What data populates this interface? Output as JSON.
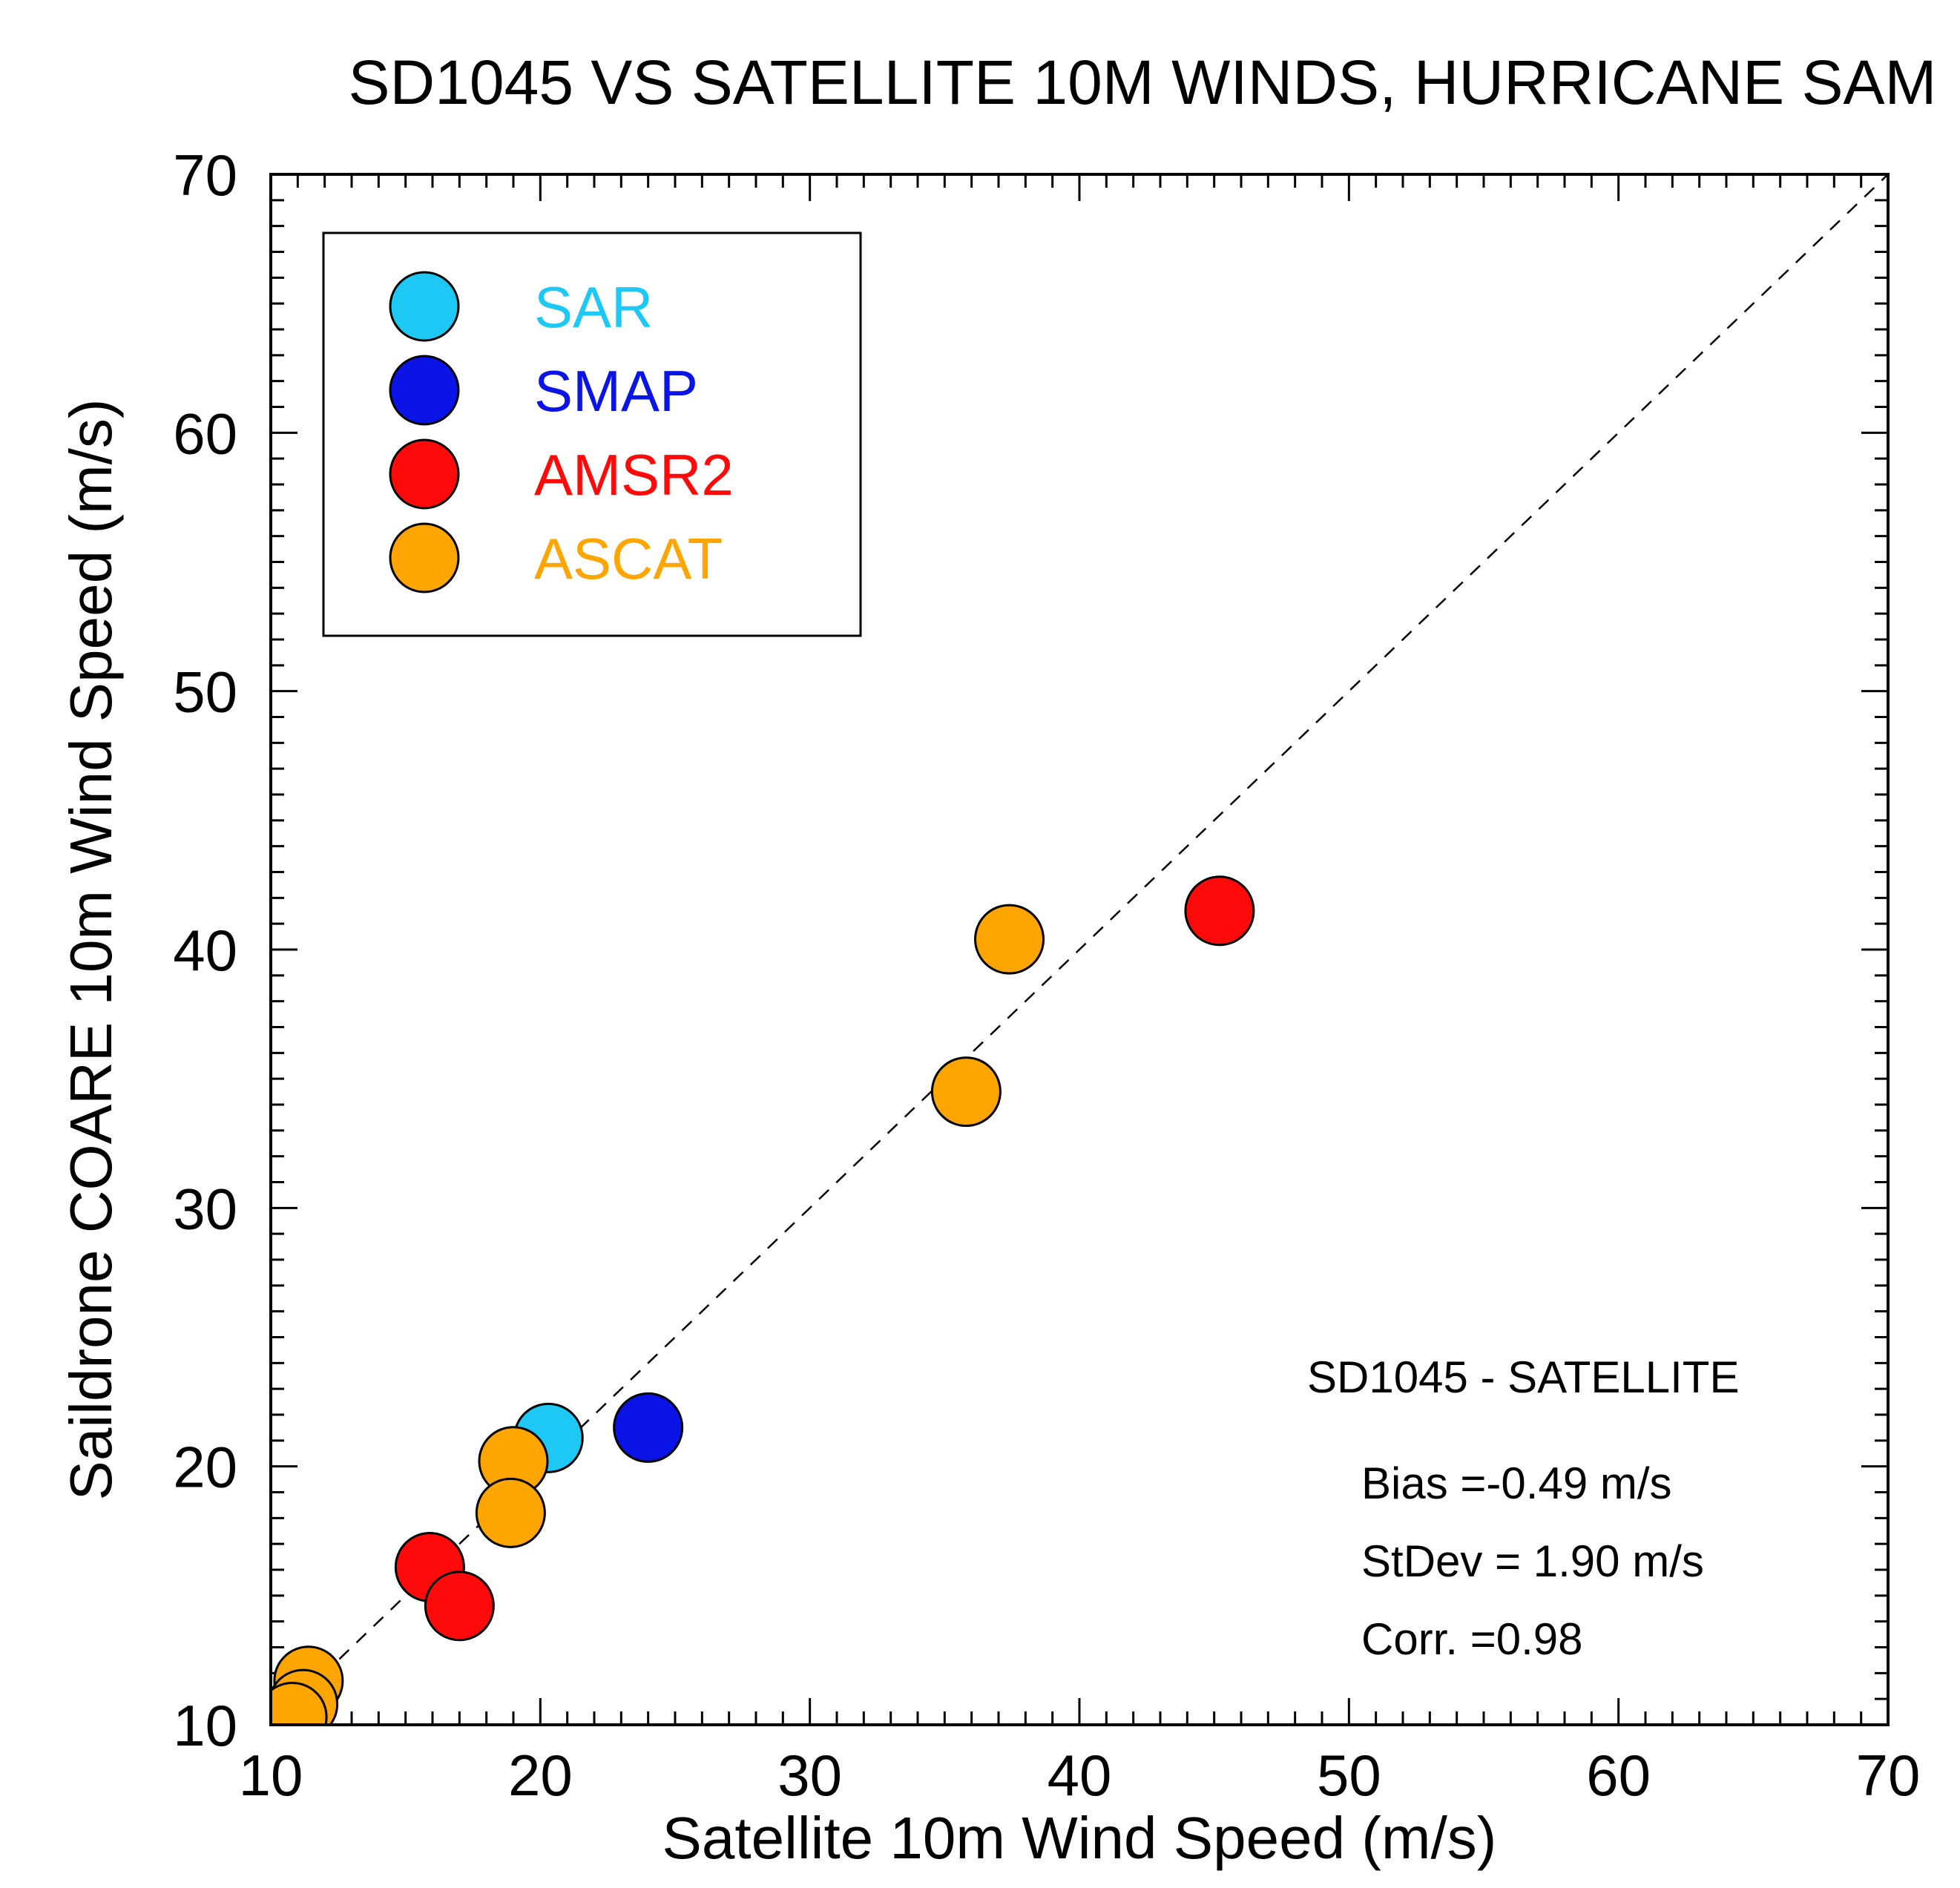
{
  "chart_data": {
    "type": "scatter",
    "title": "SD1045 VS SATELLITE 10M WINDS, HURRICANE SAM",
    "xlabel": "Satellite 10m Wind Speed (m/s)",
    "ylabel": "Saildrone COARE 10m Wind Speed (m/s)",
    "xlim": [
      10,
      70
    ],
    "ylim": [
      10,
      70
    ],
    "xticks": [
      10,
      20,
      30,
      40,
      50,
      60,
      70
    ],
    "yticks": [
      10,
      20,
      30,
      40,
      50,
      60,
      70
    ],
    "reference_line": "1:1 dashed",
    "series": [
      {
        "name": "SAR",
        "color": "#1ec8f5",
        "points": [
          [
            20.3,
            21.1
          ]
        ]
      },
      {
        "name": "SMAP",
        "color": "#0a14e6",
        "points": [
          [
            24.0,
            21.5
          ]
        ]
      },
      {
        "name": "AMSR2",
        "color": "#ff0a0a",
        "points": [
          [
            45.2,
            41.5
          ],
          [
            15.9,
            16.1
          ],
          [
            17.0,
            14.6
          ]
        ]
      },
      {
        "name": "ASCAT",
        "color": "#ffa500",
        "points": [
          [
            37.4,
            40.4
          ],
          [
            35.8,
            34.5
          ],
          [
            19.0,
            20.2
          ],
          [
            18.9,
            18.2
          ],
          [
            11.4,
            11.7
          ],
          [
            11.2,
            10.8
          ],
          [
            10.8,
            10.3
          ]
        ]
      }
    ],
    "stats_box": {
      "heading": "SD1045 - SATELLITE",
      "bias": "Bias =-0.49 m/s",
      "stdev": "StDev = 1.90 m/s",
      "corr": "Corr. =0.98"
    }
  }
}
